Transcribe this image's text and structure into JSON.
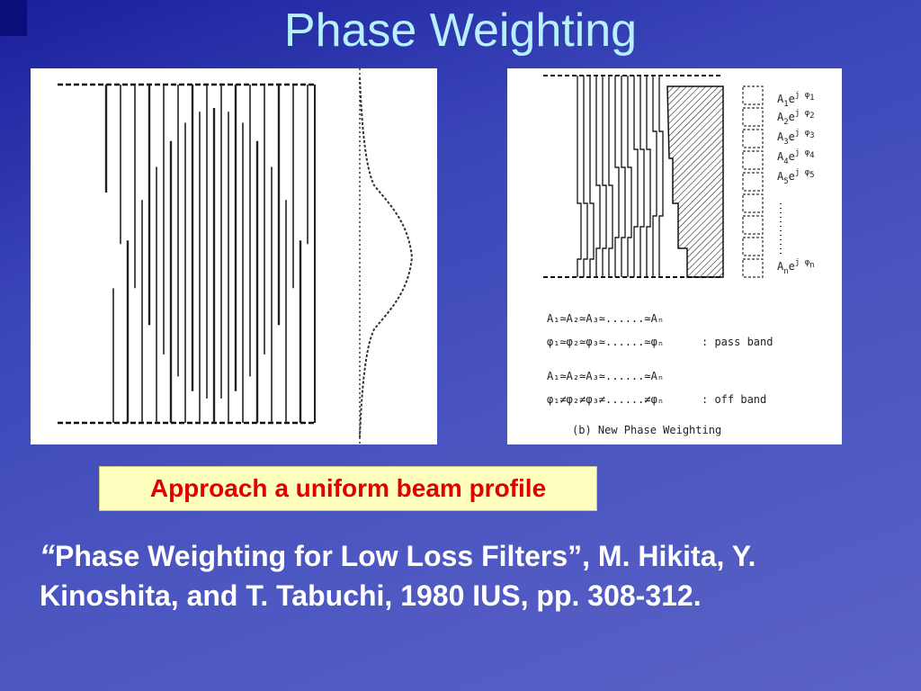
{
  "slide": {
    "title": "Phase Weighting",
    "highlight": "Approach a uniform beam profile",
    "citation_open_quote": "“",
    "citation": "Phase Weighting for Low Loss Filters”, M. Hikita, Y. Kinoshita, and T. Tabuchi, 1980 IUS, pp. 308-312."
  },
  "figure_right": {
    "labels": [
      {
        "base": "A",
        "sub": "1",
        "mid": "e",
        "sup": "j φ",
        "sup_sub": "1"
      },
      {
        "base": "A",
        "sub": "2",
        "mid": "e",
        "sup": "j φ",
        "sup_sub": "2"
      },
      {
        "base": "A",
        "sub": "3",
        "mid": "e",
        "sup": "j φ",
        "sup_sub": "3"
      },
      {
        "base": "A",
        "sub": "4",
        "mid": "e",
        "sup": "j φ",
        "sup_sub": "4"
      },
      {
        "base": "A",
        "sub": "5",
        "mid": "e",
        "sup": "j φ",
        "sup_sub": "5"
      },
      {
        "base": "A",
        "sub": "n",
        "mid": "e",
        "sup": "j φ",
        "sup_sub": "n"
      }
    ],
    "pass_amp": "A₁≃A₂≃A₃≃......≃Aₙ",
    "pass_phase": "φ₁≃φ₂≃φ₃≃......≃φₙ",
    "pass_label": ": pass band",
    "off_amp": "A₁≃A₂≃A₃≃......≃Aₙ",
    "off_phase": "φ₁≠φ₂≠φ₃≠......≠φₙ",
    "off_label": ": off band",
    "caption": "(b) New Phase Weighting"
  },
  "colors": {
    "title": "#b8f0ff",
    "highlight_bg": "#ffffc0",
    "highlight_text": "#e00000",
    "citation_text": "#ffffff"
  }
}
